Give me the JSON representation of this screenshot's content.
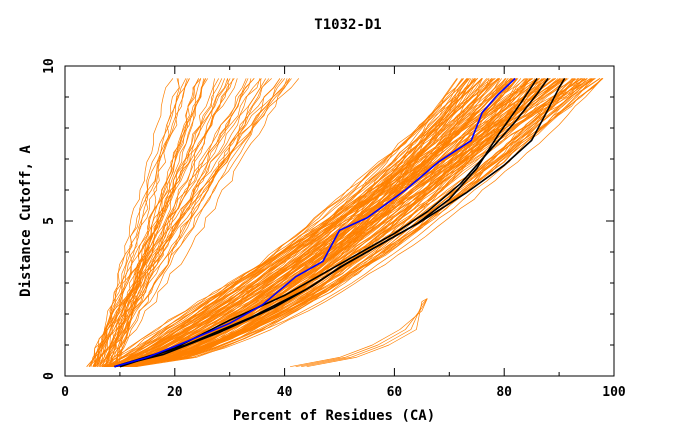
{
  "chart_data": {
    "type": "line",
    "title": "T1032-D1",
    "xlabel": "Percent of Residues (CA)",
    "ylabel": "Distance Cutoff, A",
    "xlim": [
      0,
      100
    ],
    "ylim": [
      0,
      10
    ],
    "xticks": [
      "0",
      "20",
      "40",
      "60",
      "80",
      "100"
    ],
    "yticks": [
      "0",
      "5",
      "10"
    ],
    "grid": false,
    "colors": {
      "bundle": "#ff8000",
      "highlight": "#0000ff",
      "reference": "#000000"
    },
    "highlight_series": {
      "color": "#0000ff",
      "points": [
        [
          9,
          0.3
        ],
        [
          15,
          0.6
        ],
        [
          22,
          1.1
        ],
        [
          30,
          1.7
        ],
        [
          36,
          2.3
        ],
        [
          42,
          3.2
        ],
        [
          47,
          3.7
        ],
        [
          50,
          4.7
        ],
        [
          55,
          5.1
        ],
        [
          62,
          6.0
        ],
        [
          68,
          6.9
        ],
        [
          74,
          7.6
        ],
        [
          76,
          8.5
        ],
        [
          79,
          9.1
        ],
        [
          82,
          9.6
        ]
      ]
    },
    "reference_series": [
      {
        "color": "#000000",
        "points": [
          [
            9,
            0.3
          ],
          [
            18,
            0.7
          ],
          [
            28,
            1.4
          ],
          [
            38,
            2.2
          ],
          [
            45,
            2.9
          ],
          [
            50,
            3.5
          ],
          [
            57,
            4.2
          ],
          [
            64,
            4.9
          ],
          [
            70,
            5.7
          ],
          [
            75,
            6.7
          ],
          [
            79,
            7.8
          ],
          [
            83,
            8.8
          ],
          [
            86,
            9.6
          ]
        ]
      },
      {
        "color": "#000000",
        "points": [
          [
            9,
            0.3
          ],
          [
            20,
            0.9
          ],
          [
            30,
            1.8
          ],
          [
            40,
            2.6
          ],
          [
            47,
            3.3
          ],
          [
            53,
            3.9
          ],
          [
            60,
            4.6
          ],
          [
            66,
            5.3
          ],
          [
            72,
            6.2
          ],
          [
            77,
            7.2
          ],
          [
            82,
            8.2
          ],
          [
            86,
            9.1
          ],
          [
            88,
            9.6
          ]
        ]
      },
      {
        "color": "#000000",
        "points": [
          [
            10,
            0.3
          ],
          [
            22,
            1.0
          ],
          [
            34,
            1.9
          ],
          [
            44,
            2.8
          ],
          [
            51,
            3.6
          ],
          [
            58,
            4.3
          ],
          [
            65,
            5.0
          ],
          [
            73,
            5.9
          ],
          [
            80,
            6.8
          ],
          [
            85,
            7.6
          ],
          [
            88,
            8.6
          ],
          [
            90,
            9.3
          ],
          [
            91,
            9.6
          ]
        ]
      }
    ],
    "bundle_note": "Orange lines: many model curves spanning roughly 4-98 percent residues across distance cutoffs 0.3-9.6 A"
  }
}
